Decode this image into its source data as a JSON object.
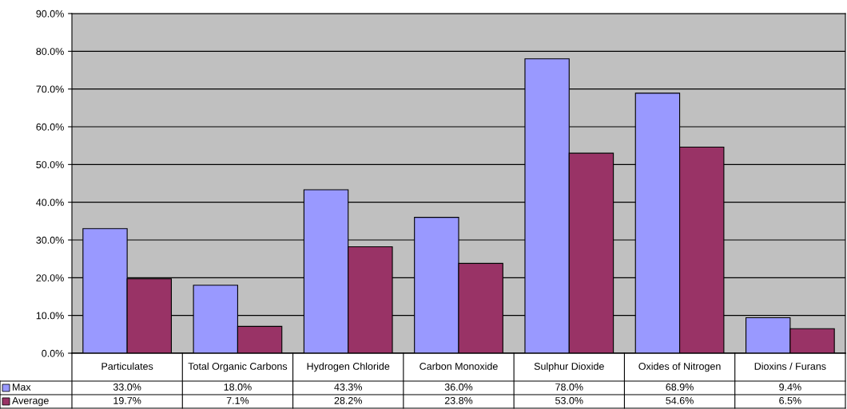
{
  "chart_data": {
    "type": "bar",
    "categories": [
      "Particulates",
      "Total Organic Carbons",
      "Hydrogen Chloride",
      "Carbon Monoxide",
      "Sulphur Dioxide",
      "Oxides of Nitrogen",
      "Dioxins / Furans"
    ],
    "series": [
      {
        "name": "Max",
        "color": "#9999ff",
        "values": [
          33.0,
          18.0,
          43.3,
          36.0,
          78.0,
          68.9,
          9.4
        ],
        "value_labels": [
          "33.0%",
          "18.0%",
          "43.3%",
          "36.0%",
          "78.0%",
          "68.9%",
          "9.4%"
        ]
      },
      {
        "name": "Average",
        "color": "#993366",
        "values": [
          19.7,
          7.1,
          28.2,
          23.8,
          53.0,
          54.6,
          6.5
        ],
        "value_labels": [
          "19.7%",
          "7.1%",
          "28.2%",
          "23.8%",
          "53.0%",
          "54.6%",
          "6.5%"
        ]
      }
    ],
    "ylim": [
      0,
      90
    ],
    "yticks": [
      {
        "value": 0,
        "label": "0.0%"
      },
      {
        "value": 10,
        "label": "10.0%"
      },
      {
        "value": 20,
        "label": "20.0%"
      },
      {
        "value": 30,
        "label": "30.0%"
      },
      {
        "value": 40,
        "label": "40.0%"
      },
      {
        "value": 50,
        "label": "50.0%"
      },
      {
        "value": 60,
        "label": "60.0%"
      },
      {
        "value": 70,
        "label": "70.0%"
      },
      {
        "value": 80,
        "label": "80.0%"
      },
      {
        "value": 90,
        "label": "90.0%"
      }
    ],
    "grid": "y",
    "legend": "bottom left"
  }
}
